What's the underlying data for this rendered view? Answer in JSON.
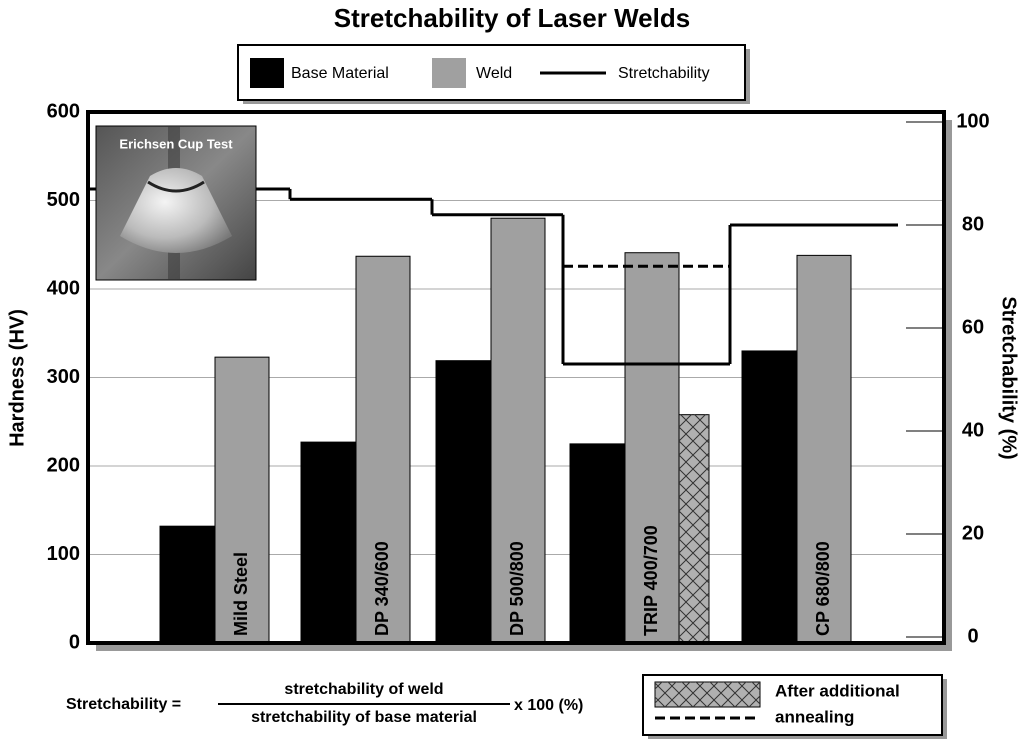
{
  "chart_data": {
    "type": "bar",
    "title": "Stretchability of Laser Welds",
    "y_label": "Hardness (HV)",
    "y2_label": "Stretchability (%)",
    "categories": [
      "Mild Steel",
      "DP 340/600",
      "DP 500/800",
      "TRIP 400/700",
      "CP 680/800"
    ],
    "series": [
      {
        "name": "Base Material",
        "color": "#000000",
        "values": [
          132,
          227,
          319,
          225,
          330
        ]
      },
      {
        "name": "Weld",
        "color": "#a0a0a0",
        "values": [
          323,
          437,
          480,
          441,
          438
        ]
      },
      {
        "name": "Stretchability",
        "color": "#000000",
        "axis": "y2",
        "type": "line",
        "values": [
          87,
          85,
          82,
          53,
          80
        ]
      }
    ],
    "annealed": {
      "label": [
        "After additional",
        "annealing"
      ],
      "color": "#b0b0b0",
      "hardness_values": [
        null,
        null,
        null,
        258,
        null
      ],
      "stretchability_values": [
        null,
        null,
        null,
        72,
        null
      ]
    },
    "ylim": [
      0,
      600
    ],
    "yticks": [
      0,
      100,
      200,
      300,
      400,
      500,
      600
    ],
    "y2lim": [
      0,
      100
    ],
    "y2ticks": [
      0,
      20,
      40,
      60,
      80,
      100
    ],
    "grid": true,
    "inset_label": "Erichsen Cup Test",
    "formula": {
      "lhs": "Stretchability =",
      "numerator": "stretchability of weld",
      "denominator": "stretchability of base material",
      "factor": "x 100 (%)"
    }
  }
}
